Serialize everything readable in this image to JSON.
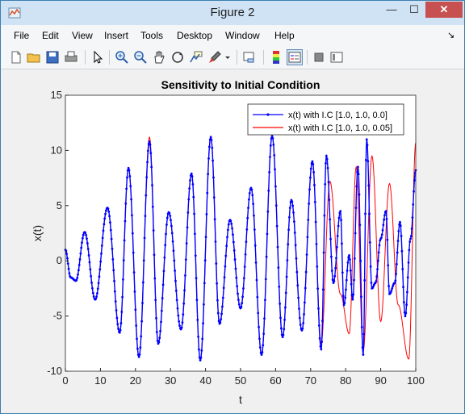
{
  "window": {
    "title": "Figure 2",
    "min_glyph": "—",
    "max_glyph": "☐",
    "close_glyph": "✕"
  },
  "menu": {
    "items": [
      "File",
      "Edit",
      "View",
      "Insert",
      "Tools",
      "Desktop",
      "Window",
      "Help"
    ],
    "dock_glyph": "↘"
  },
  "toolbar": {
    "icons": [
      "new-figure-icon",
      "open-file-icon",
      "save-icon",
      "print-icon",
      "pointer-icon",
      "zoom-in-icon",
      "zoom-out-icon",
      "pan-icon",
      "rotate-3d-icon",
      "data-cursor-icon",
      "brush-icon",
      "brush-dropdown-icon",
      "link-plot-icon",
      "colorbar-icon",
      "legend-icon",
      "hide-plot-tools-icon",
      "show-plot-tools-icon"
    ]
  },
  "colors": {
    "series1": "#0000ff",
    "series2": "#ff0000",
    "titlebar": "#cfe3f5",
    "close": "#c75050"
  },
  "chart_data": {
    "type": "line",
    "title": "Sensitivity to Initial Condition",
    "xlabel": "t",
    "ylabel": "x(t)",
    "xlim": [
      0,
      100
    ],
    "ylim": [
      -10,
      15
    ],
    "xticks": [
      0,
      10,
      20,
      30,
      40,
      50,
      60,
      70,
      80,
      90,
      100
    ],
    "yticks": [
      -10,
      -5,
      0,
      5,
      10,
      15
    ],
    "grid": false,
    "legend_position": "top-right",
    "series": [
      {
        "name": "x(t) with I.C [1.0, 1.0, 0.0]",
        "color": "#0000ff",
        "marker": "dot",
        "x": [
          0,
          1.5,
          3,
          5.5,
          8.5,
          12,
          15.5,
          18,
          21,
          24,
          26.5,
          29.5,
          33,
          36,
          38.5,
          41.5,
          44,
          47,
          50,
          53,
          56,
          59,
          62,
          64.5,
          67.5,
          70.5,
          73,
          74.5,
          76.5,
          78.5,
          79.5,
          81,
          82,
          83.5,
          85,
          86,
          87.5,
          88.5,
          90,
          91.5,
          92.5,
          94,
          95.5,
          97,
          98.5,
          100
        ],
        "y": [
          1.0,
          -1.5,
          -1.8,
          2.6,
          -3.5,
          4.8,
          -6.5,
          8.4,
          -8.7,
          10.8,
          -7.5,
          4.4,
          -6.2,
          7.9,
          -9.0,
          11.2,
          -5.7,
          3.7,
          -4.3,
          6.6,
          -8.5,
          11.3,
          -6.9,
          5.5,
          -6.3,
          9.0,
          -8.0,
          9.5,
          -2.0,
          4.5,
          -4.0,
          0.5,
          -3.5,
          8.5,
          -8.5,
          11.0,
          -2.5,
          -2.0,
          2.0,
          4.5,
          -3.0,
          -2.0,
          3.5,
          -5.0,
          2.0,
          8.2
        ]
      },
      {
        "name": "x(t) with I.C [1.0, 1.0, 0.05]",
        "color": "#ff0000",
        "marker": "none",
        "x": [
          0,
          1.5,
          3,
          5.5,
          8.5,
          12,
          15.5,
          18,
          21,
          24,
          26.5,
          29.5,
          33,
          36,
          38.5,
          41.5,
          44,
          47,
          50,
          53,
          56,
          59,
          62,
          64.5,
          67.5,
          70.5,
          73,
          75.5,
          78.5,
          81,
          83,
          85,
          87.5,
          90,
          92.5,
          95,
          98,
          100
        ],
        "y": [
          1.0,
          -1.5,
          -1.8,
          2.6,
          -3.5,
          4.8,
          -6.5,
          8.4,
          -8.7,
          11.2,
          -7.5,
          4.4,
          -6.2,
          7.9,
          -9.0,
          11.3,
          -5.7,
          3.7,
          -4.3,
          6.6,
          -8.5,
          11.3,
          -6.9,
          5.5,
          -6.3,
          9.0,
          -7.5,
          7.2,
          -3.0,
          -6.6,
          8.5,
          -8.2,
          9.5,
          -5.5,
          7.0,
          -4.0,
          -8.9,
          10.7
        ]
      }
    ]
  }
}
